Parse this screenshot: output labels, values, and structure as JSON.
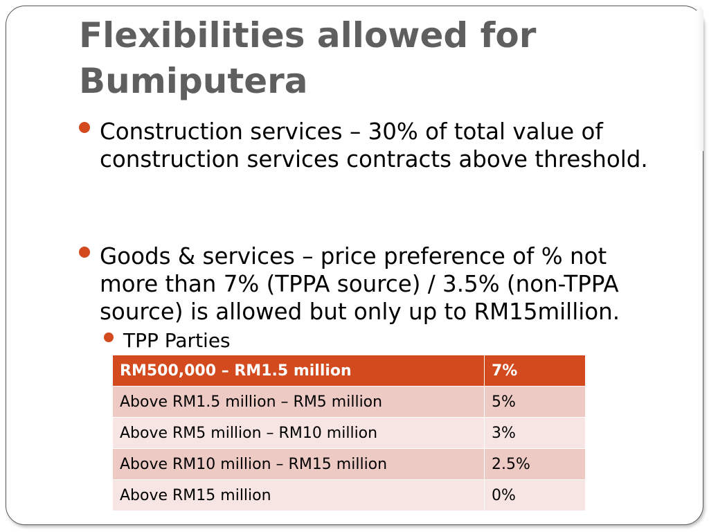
{
  "slide": {
    "title": "Flexibilities allowed for Bumiputera",
    "bullets": [
      "Construction services – 30% of total value of construction services contracts above threshold.",
      "Goods & services – price preference of % not more than 7% (TPPA source) / 3.5% (non-TPPA source) is allowed but only up to RM15million."
    ],
    "sub_bullet": "TPP Parties",
    "accent_color": "#d24a1e",
    "title_color": "#5f5f5f"
  },
  "table": {
    "header": [
      "RM500,000 – RM1.5 million",
      "7%"
    ],
    "rows": [
      [
        "Above RM1.5 million – RM5 million",
        "5%"
      ],
      [
        "Above RM5 million – RM10 million",
        "3%"
      ],
      [
        "Above RM10 million – RM15 million",
        "2.5%"
      ],
      [
        "Above RM15 million",
        "0%"
      ]
    ]
  }
}
